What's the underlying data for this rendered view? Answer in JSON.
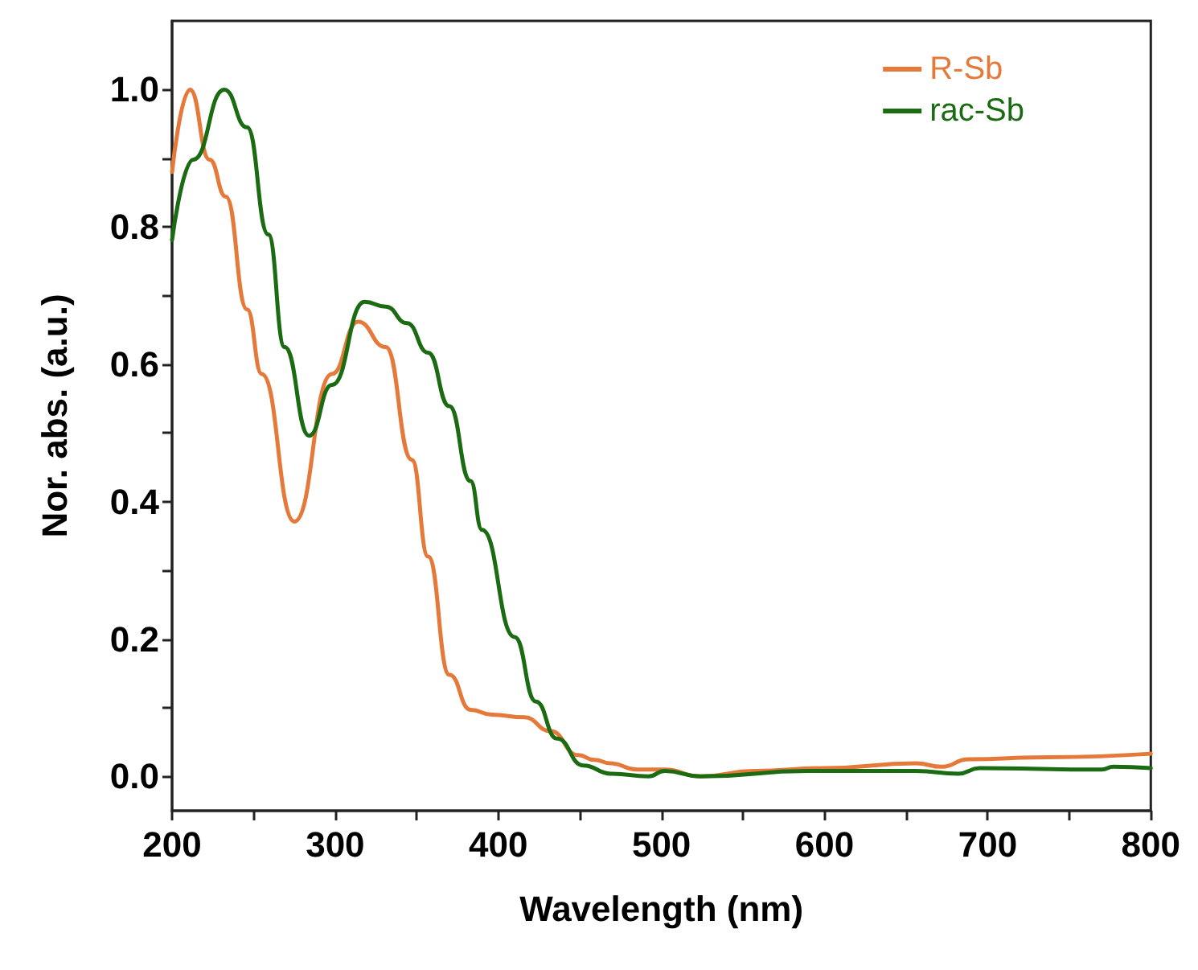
{
  "chart_data": {
    "type": "line",
    "xlabel": "Wavelength (nm)",
    "ylabel": "Nor. abs. (a.u.)",
    "xlim": [
      200,
      800
    ],
    "ylim": [
      -0.05,
      1.1
    ],
    "xticks": [
      200,
      {
        "value": 250,
        "label": null
      },
      300,
      {
        "value": 350,
        "label": null
      },
      400,
      {
        "value": 450,
        "label": null
      },
      500,
      {
        "value": 550,
        "label": null
      },
      600,
      {
        "value": 650,
        "label": null
      },
      700,
      {
        "value": 750,
        "label": null
      },
      800
    ],
    "yticks": [
      {
        "value": 0,
        "label": "0.0"
      },
      {
        "value": 0.1,
        "label": null
      },
      0.2,
      {
        "value": 0.3,
        "label": null
      },
      0.4,
      {
        "value": 0.5,
        "label": null
      },
      0.6,
      {
        "value": 0.7,
        "label": null
      },
      0.8,
      {
        "value": 0.9,
        "label": null
      },
      {
        "value": 1,
        "label": "1.0"
      }
    ],
    "grid": false,
    "legend": "top right",
    "marker": "none",
    "line_style": "solid",
    "series": [
      {
        "name": "R-Sb",
        "color": "#e5793a",
        "x": [
          200,
          211,
          223,
          233,
          246,
          255,
          275,
          298,
          314,
          331,
          347,
          357,
          370,
          383,
          396,
          416,
          432,
          449,
          459,
          469,
          485,
          502,
          524,
          557,
          600,
          656,
          672,
          688,
          737,
          800
        ],
        "values": [
          0.88,
          1.0,
          0.898,
          0.844,
          0.68,
          0.586,
          0.371,
          0.586,
          0.662,
          0.625,
          0.461,
          0.32,
          0.148,
          0.097,
          0.09,
          0.086,
          0.066,
          0.031,
          0.024,
          0.019,
          0.01,
          0.01,
          0.0,
          0.008,
          0.012,
          0.019,
          0.014,
          0.025,
          0.028,
          0.033
        ]
      },
      {
        "name": "rac-Sb",
        "color": "#1a6b12",
        "x": [
          200,
          213,
          232,
          246,
          259,
          269,
          284,
          298,
          318,
          331,
          344,
          357,
          370,
          383,
          390,
          410,
          423,
          436,
          452,
          469,
          492,
          502,
          524,
          590,
          656,
          682,
          695,
          770,
          777,
          800
        ],
        "values": [
          0.781,
          0.898,
          1.0,
          0.945,
          0.789,
          0.625,
          0.496,
          0.57,
          0.691,
          0.684,
          0.66,
          0.617,
          0.539,
          0.43,
          0.359,
          0.203,
          0.109,
          0.055,
          0.016,
          0.004,
          0.0,
          0.008,
          0.0,
          0.008,
          0.008,
          0.004,
          0.012,
          0.01,
          0.014,
          0.012
        ]
      }
    ]
  }
}
